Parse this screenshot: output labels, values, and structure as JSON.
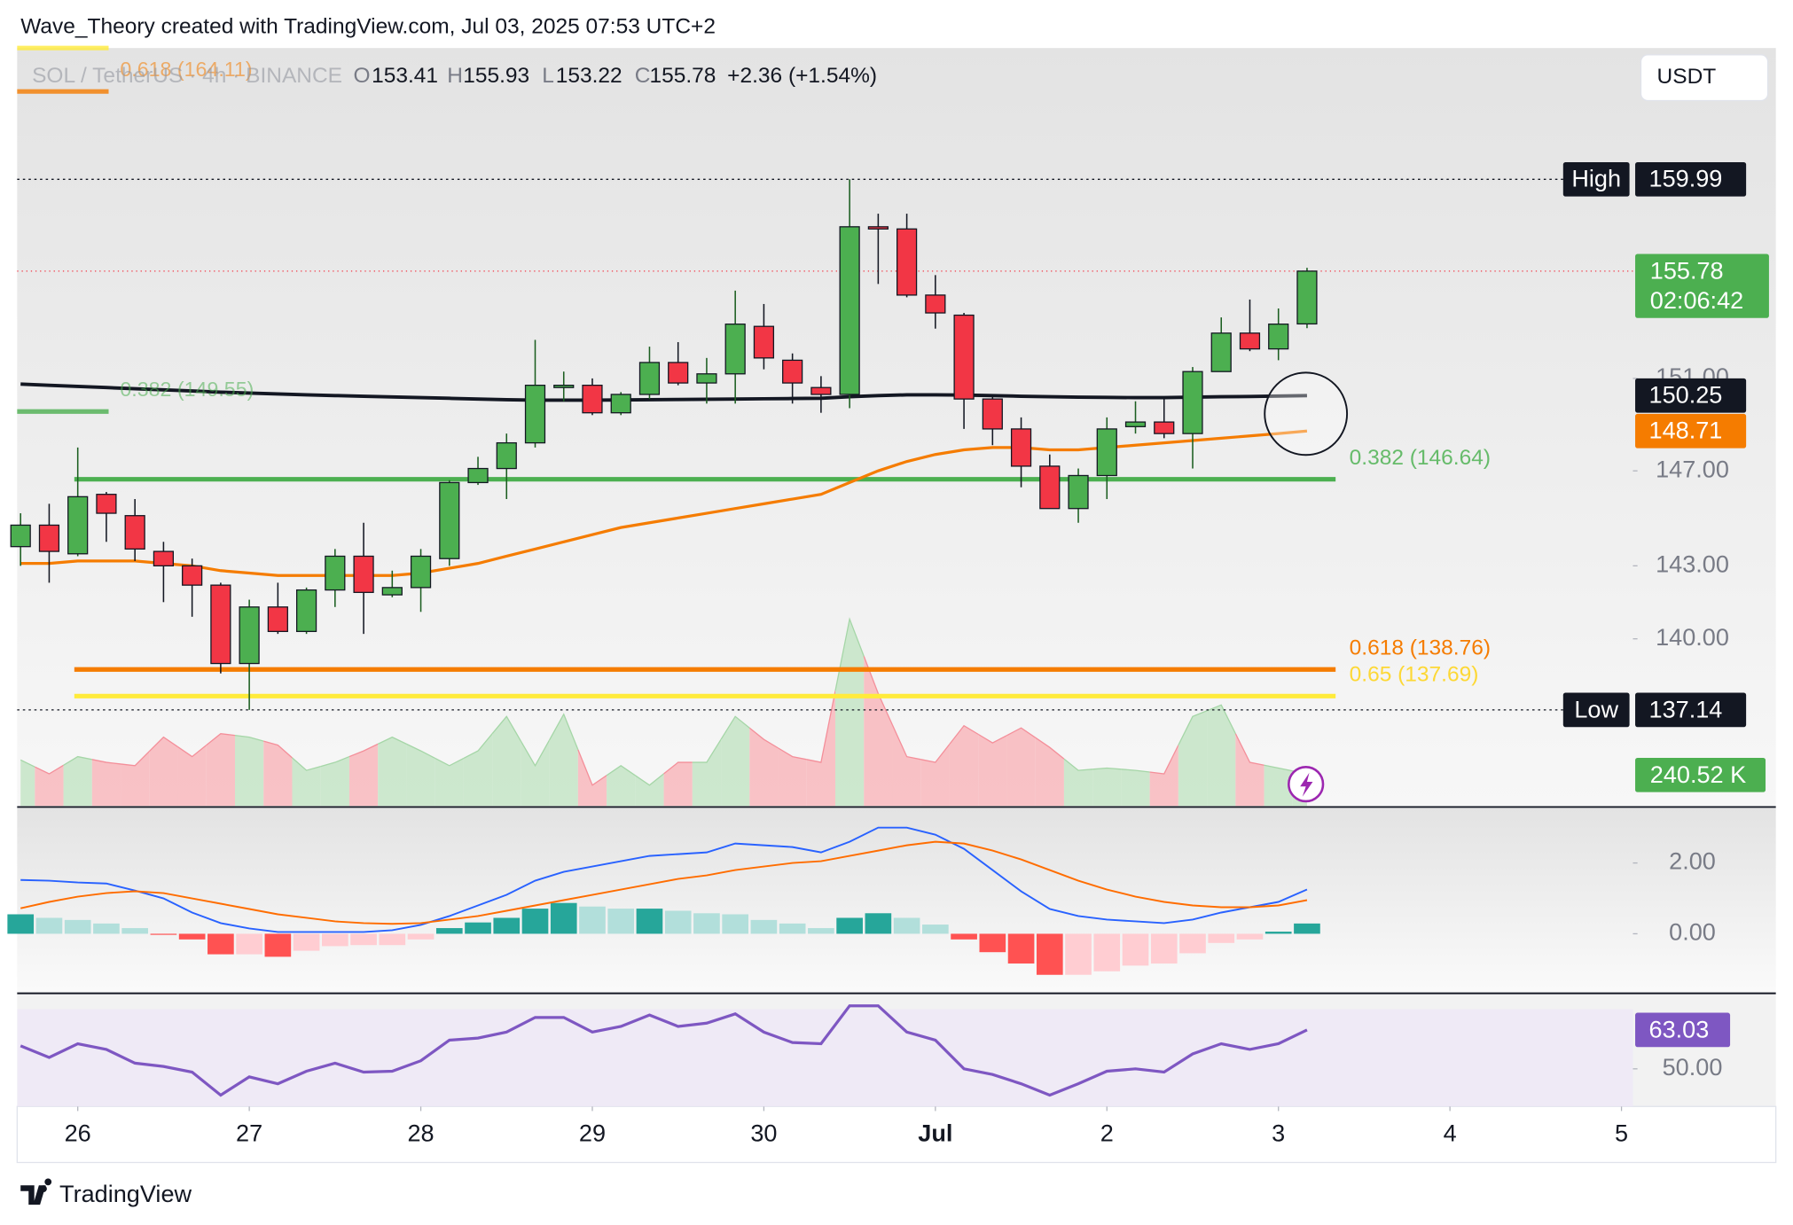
{
  "header": {
    "credit": "Wave_Theory created with TradingView.com, Jul 03, 2025 07:53 UTC+2",
    "symbol": "SOL / TetherUS · 4h · BINANCE",
    "ohlc_letters": [
      "O",
      "H",
      "L",
      "C"
    ],
    "change": "+2.36 (+1.54%)",
    "currency": "USDT"
  },
  "footer": {
    "brand": "TradingView"
  },
  "chart_data": {
    "type": "candlestick",
    "log_scale": true,
    "ylim": [
      133.37,
      166.21
    ],
    "yticks": [
      {
        "value": 151,
        "label": "151.00"
      },
      {
        "value": 147,
        "label": "147.00"
      },
      {
        "value": 143,
        "label": "143.00"
      },
      {
        "value": 140,
        "label": "140.00"
      }
    ],
    "xlim": [
      -0.12,
      56.4
    ],
    "xticks": [
      {
        "value": 2,
        "label": "26"
      },
      {
        "value": 8,
        "label": "27"
      },
      {
        "value": 14,
        "label": "28"
      },
      {
        "value": 20,
        "label": "29"
      },
      {
        "value": 26,
        "label": "30"
      },
      {
        "value": 32,
        "label": "Jul"
      },
      {
        "value": 38,
        "label": "2"
      },
      {
        "value": 44,
        "label": "3"
      },
      {
        "value": 50,
        "label": "4"
      },
      {
        "value": 56,
        "label": "5"
      }
    ],
    "candles": {
      "open": [
        143.8,
        144.7,
        143.5,
        146.0,
        145.1,
        143.6,
        143.0,
        142.2,
        139.0,
        141.3,
        140.3,
        142.0,
        143.4,
        141.8,
        142.1,
        143.3,
        146.5,
        147.1,
        148.2,
        150.6,
        150.7,
        149.5,
        150.3,
        151.7,
        150.8,
        151.2,
        153.3,
        151.8,
        150.6,
        150.3,
        157.8,
        157.7,
        154.7,
        153.8,
        150.1,
        148.8,
        147.2,
        145.4,
        146.8,
        148.9,
        149.1,
        148.6,
        151.3,
        153.0,
        152.3,
        153.41
      ],
      "high": [
        145.2,
        145.6,
        148.0,
        146.1,
        145.8,
        144.0,
        143.3,
        142.3,
        141.6,
        142.3,
        142.1,
        143.7,
        144.8,
        142.8,
        143.7,
        146.6,
        147.6,
        148.6,
        152.7,
        151.3,
        151.0,
        150.4,
        152.4,
        152.6,
        151.9,
        154.9,
        154.3,
        152.1,
        151.1,
        159.99,
        158.4,
        158.4,
        155.6,
        153.9,
        150.2,
        149.3,
        147.7,
        147.1,
        149.3,
        150.0,
        150.1,
        151.5,
        153.7,
        154.5,
        154.1,
        155.93
      ],
      "low": [
        143.0,
        142.3,
        143.4,
        144.0,
        143.2,
        141.5,
        140.9,
        138.6,
        137.14,
        140.2,
        140.2,
        141.3,
        140.2,
        141.7,
        141.1,
        143.0,
        146.4,
        145.8,
        148.0,
        150.0,
        149.4,
        149.4,
        150.1,
        150.7,
        149.9,
        149.9,
        151.4,
        149.9,
        149.5,
        149.7,
        155.2,
        154.6,
        153.2,
        148.8,
        148.1,
        146.3,
        145.4,
        144.8,
        145.8,
        148.6,
        148.4,
        147.1,
        151.3,
        152.2,
        151.8,
        153.22
      ],
      "close": [
        144.7,
        143.6,
        145.9,
        145.2,
        143.7,
        143.0,
        142.2,
        139.0,
        141.3,
        140.3,
        142.0,
        143.4,
        141.9,
        142.1,
        143.4,
        146.5,
        147.1,
        148.2,
        150.7,
        150.7,
        149.5,
        150.3,
        151.7,
        150.8,
        151.2,
        153.4,
        151.9,
        150.8,
        150.3,
        157.8,
        157.7,
        154.7,
        153.9,
        150.1,
        148.8,
        147.2,
        145.4,
        146.8,
        148.8,
        149.1,
        148.6,
        151.3,
        153.0,
        152.3,
        153.4,
        155.78
      ],
      "up_color": "#4caf50",
      "down_color": "#f23645"
    },
    "high_marker": {
      "label": "High",
      "index": 29
    },
    "low_marker": {
      "label": "Low",
      "index": 8
    },
    "countdown": "02:06:42",
    "lines": [
      {
        "color": "#131722",
        "values": [
          150.75,
          150.7,
          150.65,
          150.6,
          150.55,
          150.5,
          150.45,
          150.4,
          150.36,
          150.32,
          150.28,
          150.25,
          150.22,
          150.19,
          150.16,
          150.13,
          150.1,
          150.07,
          150.05,
          150.05,
          150.05,
          150.06,
          150.07,
          150.08,
          150.09,
          150.1,
          150.11,
          150.12,
          150.13,
          150.2,
          150.25,
          150.28,
          150.28,
          150.27,
          150.25,
          150.22,
          150.2,
          150.18,
          150.17,
          150.16,
          150.16,
          150.18,
          150.2,
          150.21,
          150.23,
          150.25
        ]
      },
      {
        "color": "#f57c00",
        "values": [
          143.1,
          143.1,
          143.2,
          143.2,
          143.2,
          143.1,
          143.0,
          142.8,
          142.7,
          142.6,
          142.6,
          142.6,
          142.6,
          142.6,
          142.7,
          142.9,
          143.1,
          143.4,
          143.7,
          144.0,
          144.3,
          144.6,
          144.8,
          145.0,
          145.2,
          145.4,
          145.6,
          145.8,
          146.0,
          146.5,
          147.0,
          147.4,
          147.7,
          147.9,
          148.0,
          148.0,
          147.9,
          147.9,
          148.0,
          148.1,
          148.2,
          148.3,
          148.4,
          148.5,
          148.6,
          148.71
        ]
      }
    ],
    "fib_levels": [
      {
        "label": "0.382 (146.64)",
        "value": 146.64,
        "color": "#4caf50",
        "text_color": "#66bb6a"
      },
      {
        "label": "0.618 (138.76)",
        "value": 138.76,
        "color": "#f57c00",
        "text_color": "#f57c00"
      },
      {
        "label": "0.65 (137.69)",
        "value": 137.69,
        "color": "#ffeb3b",
        "text_color": "#fdd835"
      }
    ],
    "faded_labels": [
      "0.618 (164.11)",
      "0.382 (149.55)"
    ],
    "volume": {
      "values": [
        344,
        240,
        369,
        326,
        301,
        515,
        369,
        541,
        515,
        455,
        266,
        326,
        412,
        515,
        412,
        301,
        412,
        670,
        301,
        687,
        155,
        301,
        155,
        326,
        326,
        670,
        498,
        369,
        326,
        1400,
        842,
        369,
        326,
        601,
        472,
        584,
        438,
        266,
        283,
        266,
        240,
        670,
        756,
        326,
        283,
        240.52
      ],
      "last_label": "240.52 K",
      "ylim": [
        0,
        5680
      ],
      "up_color": "#c8e6c9",
      "down_color": "#f8bbc0",
      "label_color": "#4caf50"
    },
    "macd": {
      "ylim": [
        -1.65,
        3.55
      ],
      "yticks": [
        {
          "value": 0,
          "label": "0.00"
        },
        {
          "value": 2,
          "label": "2.00"
        }
      ],
      "histogram": [
        0.55,
        0.45,
        0.39,
        0.29,
        0.16,
        -0.03,
        -0.16,
        -0.58,
        -0.58,
        -0.65,
        -0.48,
        -0.35,
        -0.32,
        -0.32,
        -0.16,
        0.16,
        0.32,
        0.45,
        0.71,
        0.87,
        0.77,
        0.71,
        0.71,
        0.65,
        0.58,
        0.55,
        0.39,
        0.29,
        0.16,
        0.45,
        0.58,
        0.45,
        0.26,
        -0.16,
        -0.52,
        -0.84,
        -1.16,
        -1.16,
        -1.06,
        -0.9,
        -0.84,
        -0.55,
        -0.26,
        -0.16,
        0.06,
        0.29
      ],
      "macd_line": {
        "color": "#2962ff",
        "values": [
          1.52,
          1.5,
          1.45,
          1.42,
          1.22,
          1.0,
          0.6,
          0.3,
          0.15,
          0.05,
          0.05,
          0.05,
          0.05,
          0.1,
          0.25,
          0.5,
          0.8,
          1.1,
          1.5,
          1.75,
          1.9,
          2.05,
          2.2,
          2.25,
          2.3,
          2.55,
          2.5,
          2.45,
          2.3,
          2.6,
          3.0,
          3.0,
          2.8,
          2.4,
          1.8,
          1.2,
          0.7,
          0.5,
          0.4,
          0.35,
          0.3,
          0.4,
          0.6,
          0.75,
          0.9,
          1.25
        ]
      },
      "signal_line": {
        "color": "#ff6d00",
        "values": [
          0.72,
          0.9,
          1.05,
          1.15,
          1.2,
          1.15,
          1.0,
          0.85,
          0.7,
          0.55,
          0.45,
          0.35,
          0.3,
          0.28,
          0.3,
          0.4,
          0.5,
          0.65,
          0.8,
          0.95,
          1.1,
          1.25,
          1.4,
          1.55,
          1.65,
          1.8,
          1.9,
          2.0,
          2.05,
          2.2,
          2.35,
          2.5,
          2.6,
          2.55,
          2.35,
          2.1,
          1.8,
          1.5,
          1.25,
          1.05,
          0.9,
          0.8,
          0.75,
          0.75,
          0.8,
          0.95
        ]
      },
      "hist_colors": {
        "grow_above": "#26a69a",
        "fall_above": "#b2dfdb",
        "grow_below": "#ffcdd2",
        "fall_below": "#ff5252"
      }
    },
    "rsi": {
      "ylim": [
        37.4,
        74.9
      ],
      "yticks": [
        {
          "value": 50,
          "label": "50.00"
        }
      ],
      "band": [
        30,
        70
      ],
      "color": "#7e57c2",
      "values": [
        57.7,
        53.8,
        58.4,
        56.5,
        51.9,
        50.8,
        48.9,
        41.2,
        47.3,
        45.0,
        49.2,
        51.9,
        48.9,
        49.2,
        52.7,
        59.6,
        60.3,
        62.3,
        67.2,
        67.2,
        62.3,
        64.2,
        68.0,
        64.2,
        65.3,
        68.4,
        62.3,
        58.8,
        58.4,
        71.1,
        71.1,
        62.3,
        59.6,
        50.0,
        48.1,
        45.0,
        41.2,
        45.0,
        49.2,
        50.0,
        48.9,
        55.0,
        58.4,
        56.5,
        58.4,
        63.03
      ]
    }
  }
}
